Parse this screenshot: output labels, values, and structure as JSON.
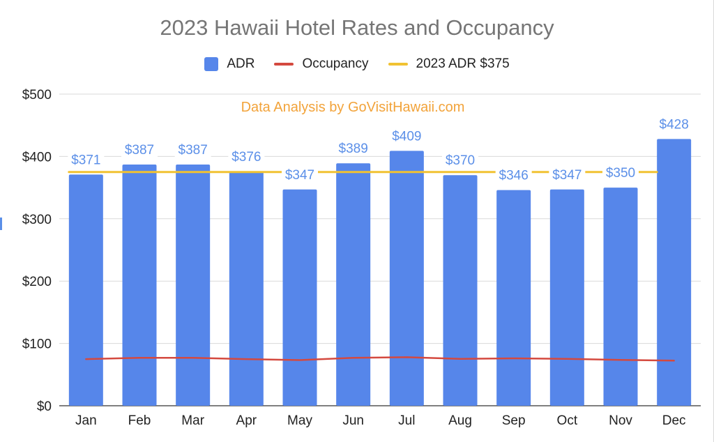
{
  "chart_data": {
    "type": "bar",
    "title": "2023 Hawaii Hotel Rates and Occupancy",
    "categories": [
      "Jan",
      "Feb",
      "Mar",
      "Apr",
      "May",
      "Jun",
      "Jul",
      "Aug",
      "Sep",
      "Oct",
      "Nov",
      "Dec"
    ],
    "series": [
      {
        "name": "ADR",
        "type": "bar",
        "color": "#5686ea",
        "values": [
          371,
          387,
          387,
          376,
          347,
          389,
          409,
          370,
          346,
          347,
          350,
          428
        ],
        "labels": [
          "$371",
          "$387",
          "$387",
          "$376",
          "$347",
          "$389",
          "$409",
          "$370",
          "$346",
          "$347",
          "$350",
          "$428"
        ]
      },
      {
        "name": "Occupancy",
        "type": "line",
        "color": "#d4493f",
        "values": [
          74.8,
          76.9,
          76.9,
          74.8,
          73.3,
          76.8,
          77.9,
          75.2,
          76.1,
          75.2,
          73.5,
          72.4
        ]
      },
      {
        "name": "2023 ADR $375",
        "type": "line",
        "color": "#f1c232",
        "values": [
          375,
          375,
          375,
          375,
          375,
          375,
          375,
          375,
          375,
          375,
          375,
          375
        ]
      }
    ],
    "yticks": [
      0,
      100,
      200,
      300,
      400,
      500
    ],
    "ytick_labels": [
      "$0",
      "$100",
      "$200",
      "$300",
      "$400",
      "$500"
    ],
    "ylim": [
      0,
      500
    ],
    "grid": true,
    "legend": "top-center",
    "annotation": "Data Analysis by GoVisitHawaii.com"
  }
}
